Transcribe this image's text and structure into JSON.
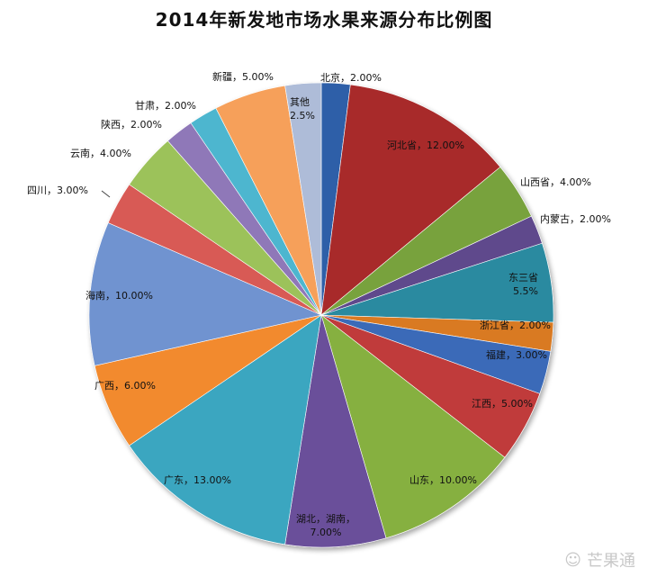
{
  "chart_data": {
    "type": "pie",
    "title": "2014年新发地市场水果来源分布比例图",
    "slices": [
      {
        "label": "北京，2.00%",
        "value": 2.0,
        "color": "#2d5ea8"
      },
      {
        "label": "河北省，12.00%",
        "value": 12.0,
        "color": "#a82a2a"
      },
      {
        "label": "山西省，4.00%",
        "value": 4.0,
        "color": "#78a23c"
      },
      {
        "label": "内蒙古，2.00%",
        "value": 2.0,
        "color": "#5e4a8c"
      },
      {
        "label": "东三省\n5.5%",
        "value": 5.5,
        "color": "#2a8aa0"
      },
      {
        "label": "浙江省，2.00%",
        "value": 2.0,
        "color": "#d97a20"
      },
      {
        "label": "福建，3.00%",
        "value": 3.0,
        "color": "#3a6ab8"
      },
      {
        "label": "江西，5.00%",
        "value": 5.0,
        "color": "#c03a3a"
      },
      {
        "label": "山东，10.00%",
        "value": 10.0,
        "color": "#86b040"
      },
      {
        "label": "湖北，湖南，\n7.00%",
        "value": 7.0,
        "color": "#6a4f9a"
      },
      {
        "label": "广东，13.00%",
        "value": 13.0,
        "color": "#3aa6c0"
      },
      {
        "label": "广西，6.00%",
        "value": 6.0,
        "color": "#f28a2e"
      },
      {
        "label": "海南，10.00%",
        "value": 10.0,
        "color": "#6f93d0"
      },
      {
        "label": "四川，3.00%",
        "value": 3.0,
        "color": "#d85a55"
      },
      {
        "label": "云南，4.00%",
        "value": 4.0,
        "color": "#9cc25a"
      },
      {
        "label": "陕西，2.00%",
        "value": 2.0,
        "color": "#8f78b8"
      },
      {
        "label": "甘肃，2.00%",
        "value": 2.0,
        "color": "#4db6cf"
      },
      {
        "label": "新疆，5.00%",
        "value": 5.0,
        "color": "#f6a05a"
      },
      {
        "label": "其他\n2.5%",
        "value": 2.5,
        "color": "#aebcd8"
      }
    ]
  },
  "watermark": {
    "icon": "wechat-icon",
    "text": "芒果通"
  }
}
